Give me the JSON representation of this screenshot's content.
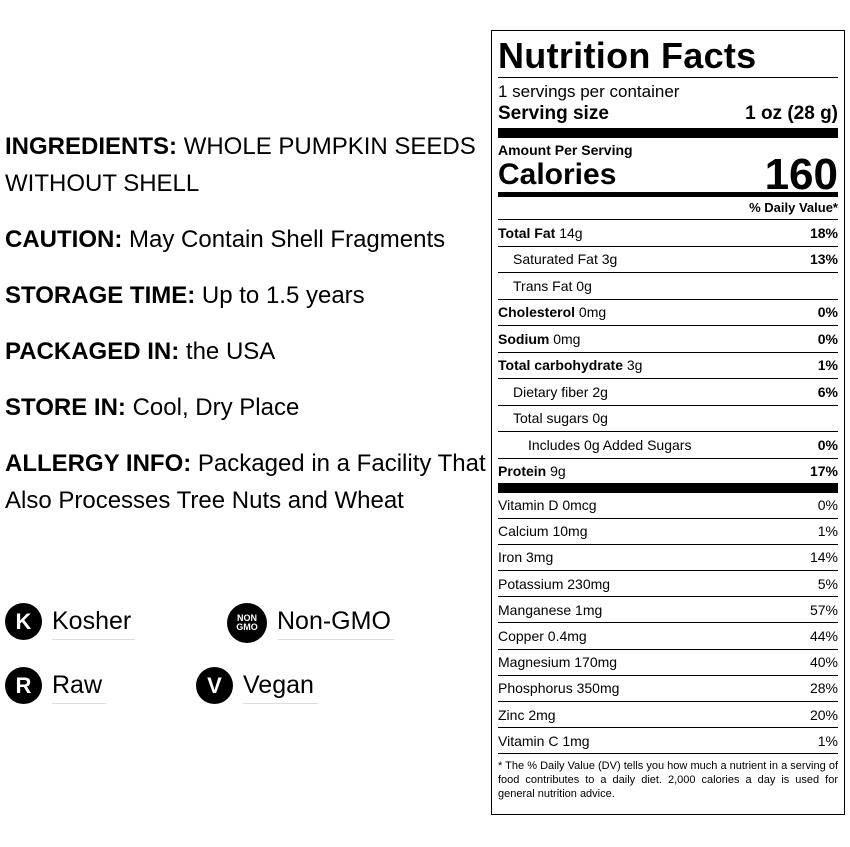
{
  "info": [
    {
      "label": "INGREDIENTS:",
      "text": "WHOLE PUMPKIN SEEDS WITHOUT SHELL"
    },
    {
      "label": "CAUTION:",
      "text": "May Contain Shell Fragments"
    },
    {
      "label": "STORAGE TIME:",
      "text": "Up to 1.5 years"
    },
    {
      "label": "PACKAGED IN:",
      "text": "the USA"
    },
    {
      "label": "STORE IN:",
      "text": "Cool, Dry Place"
    },
    {
      "label": "ALLERGY INFO:",
      "text": "Packaged in a Facility That Also Processes Tree Nuts and Wheat"
    }
  ],
  "badges": [
    [
      {
        "icon": "K",
        "label": "Kosher"
      },
      {
        "icon": "NON GMO",
        "label": "Non-GMO"
      }
    ],
    [
      {
        "icon": "R",
        "label": "Raw"
      },
      {
        "icon": "V",
        "label": "Vegan"
      }
    ]
  ],
  "nutrition": {
    "title": "Nutrition Facts",
    "servings": "1 servings per container",
    "serving_size_label": "Serving size",
    "serving_size": "1 oz (28 g)",
    "amount_per_serving": "Amount Per Serving",
    "calories_label": "Calories",
    "calories": "160",
    "dv_header": "% Daily Value*",
    "nutrients": [
      {
        "name": "Total Fat",
        "amount": "14g",
        "dv": "18%",
        "level": 0
      },
      {
        "name": "Saturated Fat",
        "amount": "3g",
        "dv": "13%",
        "level": 1
      },
      {
        "name": "Trans Fat",
        "amount": "0g",
        "level": 1
      },
      {
        "name": "Cholesterol",
        "amount": "0mg",
        "dv": "0%",
        "level": 0
      },
      {
        "name": "Sodium",
        "amount": "0mg",
        "dv": "0%",
        "level": 0
      },
      {
        "name": "Total carbohydrate",
        "amount": "3g",
        "dv": "1%",
        "level": 0
      },
      {
        "name": "Dietary fiber",
        "amount": "2g",
        "dv": "6%",
        "level": 1
      },
      {
        "name": "Total sugars",
        "amount": "0g",
        "level": 1
      },
      {
        "name": "Includes 0g Added Sugars",
        "dv": "0%",
        "level": 2
      },
      {
        "name": "Protein",
        "amount": "9g",
        "dv": "17%",
        "level": 0
      }
    ],
    "vitamins": [
      {
        "name": "Vitamin D 0mcg",
        "dv": "0%"
      },
      {
        "name": "Calcium 10mg",
        "dv": "1%"
      },
      {
        "name": "Iron 3mg",
        "dv": "14%"
      },
      {
        "name": "Potassium 230mg",
        "dv": "5%"
      },
      {
        "name": "Manganese 1mg",
        "dv": "57%"
      },
      {
        "name": "Copper 0.4mg",
        "dv": "44%"
      },
      {
        "name": "Magnesium 170mg",
        "dv": "40%"
      },
      {
        "name": "Phosphorus 350mg",
        "dv": "28%"
      },
      {
        "name": "Zinc 2mg",
        "dv": "20%"
      },
      {
        "name": "Vitamin C 1mg",
        "dv": "1%"
      }
    ],
    "footnote": "* The % Daily Value (DV) tells you how much a nutrient in a serving of food contributes to a daily diet. 2,000 calories a day is used for general nutrition advice."
  }
}
